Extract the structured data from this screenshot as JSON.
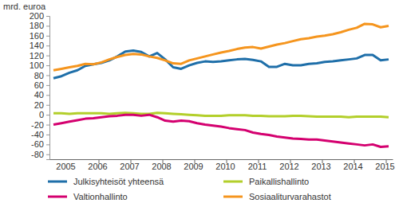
{
  "chart_data": {
    "type": "line",
    "y_label": "mrd. euroa",
    "categories": [
      null,
      "2005",
      null,
      null,
      null,
      "2006",
      null,
      null,
      null,
      "2007",
      null,
      null,
      null,
      "2008",
      null,
      null,
      null,
      "2009",
      null,
      null,
      null,
      "2010",
      null,
      null,
      null,
      "2011",
      null,
      null,
      null,
      "2012",
      null,
      null,
      null,
      "2013",
      null,
      null,
      null,
      "2014",
      null,
      null,
      null,
      "2015",
      null
    ],
    "series": [
      {
        "name": "Julkisyhteisöt yhteensä",
        "color": "#1f6fa9",
        "values": [
          74,
          78,
          85,
          90,
          99,
          102,
          105,
          110,
          118,
          128,
          130,
          127,
          118,
          125,
          112,
          96,
          93,
          100,
          105,
          108,
          107,
          108,
          110,
          112,
          113,
          111,
          108,
          97,
          97,
          103,
          100,
          100,
          103,
          104,
          107,
          108,
          110,
          112,
          114,
          121,
          121,
          110,
          112
        ]
      },
      {
        "name": "Paikallishallinto",
        "color": "#b3cf2b",
        "values": [
          3,
          3,
          2,
          3,
          3,
          3,
          3,
          2,
          3,
          4,
          3,
          2,
          2,
          4,
          3,
          2,
          1,
          0,
          -1,
          -2,
          -2,
          -2,
          -1,
          -1,
          -1,
          -2,
          -2,
          -3,
          -3,
          -3,
          -2,
          -2,
          -3,
          -4,
          -4,
          -4,
          -4,
          -5,
          -4,
          -4,
          -4,
          -4,
          -5
        ]
      },
      {
        "name": "Valtionhallinto",
        "color": "#d4006f",
        "values": [
          -20,
          -17,
          -14,
          -11,
          -8,
          -7,
          -5,
          -3,
          -2,
          0,
          0,
          -2,
          0,
          -5,
          -12,
          -14,
          -12,
          -13,
          -17,
          -20,
          -22,
          -24,
          -27,
          -29,
          -31,
          -36,
          -39,
          -41,
          -44,
          -46,
          -48,
          -49,
          -50,
          -50,
          -52,
          -54,
          -56,
          -58,
          -60,
          -62,
          -60,
          -65,
          -64
        ]
      },
      {
        "name": "Sosiaaliturvarahastot",
        "color": "#f5951e",
        "values": [
          90,
          93,
          96,
          99,
          103,
          102,
          106,
          112,
          117,
          121,
          123,
          122,
          118,
          115,
          110,
          104,
          103,
          110,
          114,
          118,
          122,
          126,
          129,
          133,
          136,
          137,
          134,
          138,
          142,
          145,
          149,
          153,
          155,
          158,
          160,
          163,
          167,
          172,
          176,
          184,
          183,
          177,
          180
        ]
      }
    ],
    "ylim": [
      -90,
      200
    ],
    "yticks": [
      -80,
      -60,
      -40,
      -20,
      0,
      20,
      40,
      60,
      80,
      100,
      120,
      140,
      160,
      180,
      200
    ],
    "grid": false,
    "legend": "bottom"
  }
}
